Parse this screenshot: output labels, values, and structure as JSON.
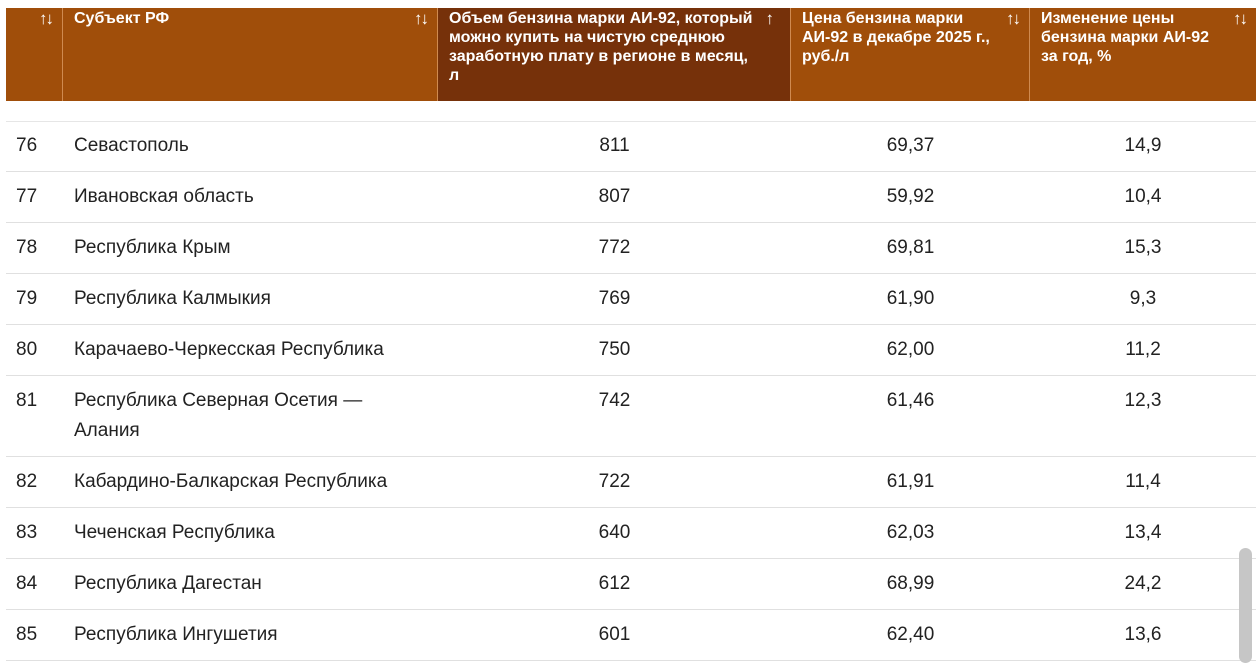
{
  "table": {
    "headers": [
      {
        "label": "",
        "sort_icon": "↑↓"
      },
      {
        "label": "Субъект РФ",
        "sort_icon": "↑↓"
      },
      {
        "label": "Объем бензина марки АИ-92, который можно купить на чистую среднюю заработную плату в регионе в месяц, л",
        "sort_icon": "↑"
      },
      {
        "label": "Цена бензина марки АИ-92 в декабре 2025 г., руб./л",
        "sort_icon": "↑↓"
      },
      {
        "label": "Изменение цены бензина марки АИ-92 за год, %",
        "sort_icon": "↑↓"
      }
    ],
    "rows": [
      {
        "rank": "76",
        "region": "Севастополь",
        "volume": "811",
        "price": "69,37",
        "change": "14,9"
      },
      {
        "rank": "77",
        "region": "Ивановская область",
        "volume": "807",
        "price": "59,92",
        "change": "10,4"
      },
      {
        "rank": "78",
        "region": "Республика Крым",
        "volume": "772",
        "price": "69,81",
        "change": "15,3"
      },
      {
        "rank": "79",
        "region": "Республика Калмыкия",
        "volume": "769",
        "price": "61,90",
        "change": "9,3"
      },
      {
        "rank": "80",
        "region": "Карачаево-Черкесская Республика",
        "volume": "750",
        "price": "62,00",
        "change": "11,2"
      },
      {
        "rank": "81",
        "region": "Республика Северная Осетия — Алания",
        "volume": "742",
        "price": "61,46",
        "change": "12,3"
      },
      {
        "rank": "82",
        "region": "Кабардино-Балкарская Республика",
        "volume": "722",
        "price": "61,91",
        "change": "11,4"
      },
      {
        "rank": "83",
        "region": "Чеченская Республика",
        "volume": "640",
        "price": "62,03",
        "change": "13,4"
      },
      {
        "rank": "84",
        "region": "Республика Дагестан",
        "volume": "612",
        "price": "68,99",
        "change": "24,2"
      },
      {
        "rank": "85",
        "region": "Республика Ингушетия",
        "volume": "601",
        "price": "62,40",
        "change": "13,6"
      }
    ]
  },
  "colors": {
    "header_bg": "#a04e0a",
    "header_active_bg": "#76310a",
    "text": "#222222"
  }
}
